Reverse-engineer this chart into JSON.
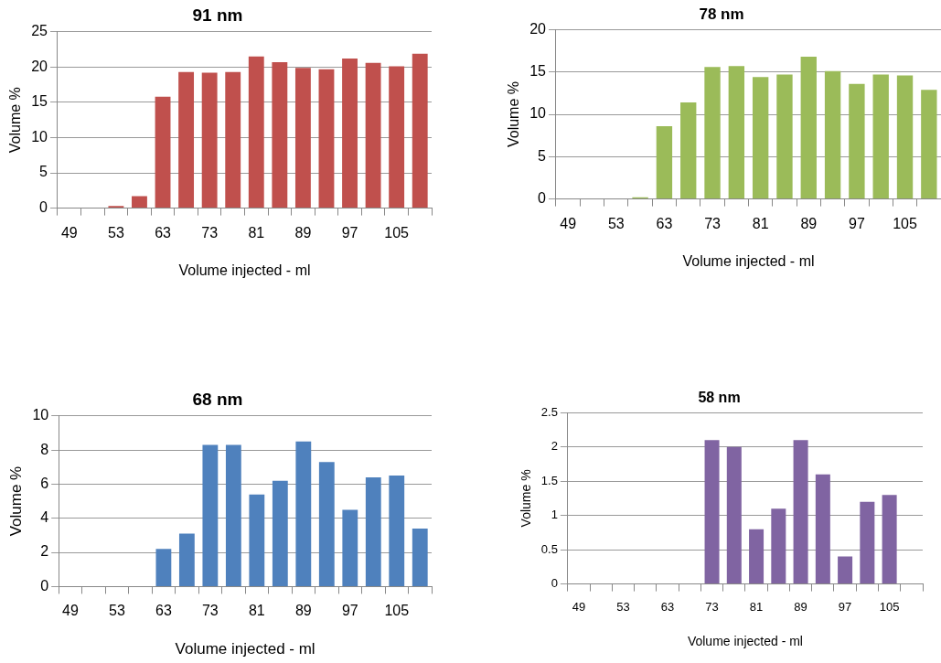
{
  "chart_data": [
    {
      "type": "bar",
      "title": "91 nm",
      "xlabel": "Volume injected - ml",
      "ylabel": "Volume %",
      "categories": [
        "49",
        null,
        "53",
        null,
        "63",
        null,
        "73",
        null,
        "81",
        null,
        "89",
        null,
        "97",
        null,
        "105",
        null
      ],
      "values": [
        0,
        0,
        0.3,
        1.7,
        15.8,
        19.3,
        19.2,
        19.3,
        21.5,
        20.7,
        19.9,
        19.7,
        21.2,
        20.6,
        20.1,
        21.9
      ],
      "color": "#c0504d",
      "ylim": [
        0,
        25
      ],
      "yticks": [
        0,
        5,
        10,
        15,
        20,
        25
      ],
      "grid": "y"
    },
    {
      "type": "bar",
      "title": "78 nm",
      "xlabel": "Volume injected - ml",
      "ylabel": "Volume %",
      "categories": [
        "49",
        null,
        "53",
        null,
        "63",
        null,
        "73",
        null,
        "81",
        null,
        "89",
        null,
        "97",
        null,
        "105",
        null
      ],
      "values": [
        0,
        0,
        0,
        0.2,
        8.6,
        11.4,
        15.6,
        15.7,
        14.4,
        14.7,
        16.8,
        15.1,
        13.6,
        14.7,
        14.6,
        12.9
      ],
      "color": "#9bbb59",
      "ylim": [
        0,
        20
      ],
      "yticks": [
        0,
        5,
        10,
        15,
        20
      ],
      "grid": "y"
    },
    {
      "type": "bar",
      "title": "68 nm",
      "xlabel": "Volume injected - ml",
      "ylabel": "Volume %",
      "categories": [
        "49",
        null,
        "53",
        null,
        "63",
        null,
        "73",
        null,
        "81",
        null,
        "89",
        null,
        "97",
        null,
        "105",
        null
      ],
      "values": [
        0,
        0,
        0,
        0,
        2.2,
        3.1,
        8.3,
        8.3,
        5.4,
        6.2,
        8.5,
        7.3,
        4.5,
        6.4,
        6.5,
        3.4
      ],
      "color": "#4f81bd",
      "ylim": [
        0,
        10
      ],
      "yticks": [
        0,
        2,
        4,
        6,
        8,
        10
      ],
      "grid": "y"
    },
    {
      "type": "bar",
      "title": "58 nm",
      "xlabel": "Volume injected - ml",
      "ylabel": "Volume %",
      "categories": [
        "49",
        null,
        "53",
        null,
        "63",
        null,
        "73",
        null,
        "81",
        null,
        "89",
        null,
        "97",
        null,
        "105",
        null
      ],
      "values": [
        0,
        0,
        0,
        0,
        0,
        0,
        2.1,
        2.0,
        0.8,
        1.1,
        2.1,
        1.6,
        0.4,
        1.2,
        1.3,
        0
      ],
      "color": "#8064a2",
      "ylim": [
        0,
        2.5
      ],
      "yticks": [
        0,
        0.5,
        1,
        1.5,
        2,
        2.5
      ],
      "grid": "y"
    }
  ]
}
